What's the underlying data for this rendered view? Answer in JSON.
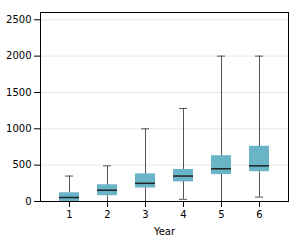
{
  "chart_data": {
    "type": "box",
    "xlabel": "Year",
    "categories": [
      "1",
      "2",
      "3",
      "4",
      "5",
      "6"
    ],
    "whisker_low": [
      0,
      0,
      0,
      30,
      0,
      60
    ],
    "q1": [
      0,
      80,
      185,
      270,
      370,
      410
    ],
    "median": [
      55,
      155,
      250,
      350,
      450,
      490
    ],
    "q3": [
      120,
      230,
      380,
      440,
      630,
      760
    ],
    "whisker_high": [
      350,
      490,
      1000,
      1280,
      2000,
      2000
    ],
    "color": "#6ab4c8",
    "ylim": [
      0,
      2600
    ],
    "yticks": [
      0,
      500,
      1000,
      1500,
      2000,
      2500
    ],
    "grid": true
  }
}
